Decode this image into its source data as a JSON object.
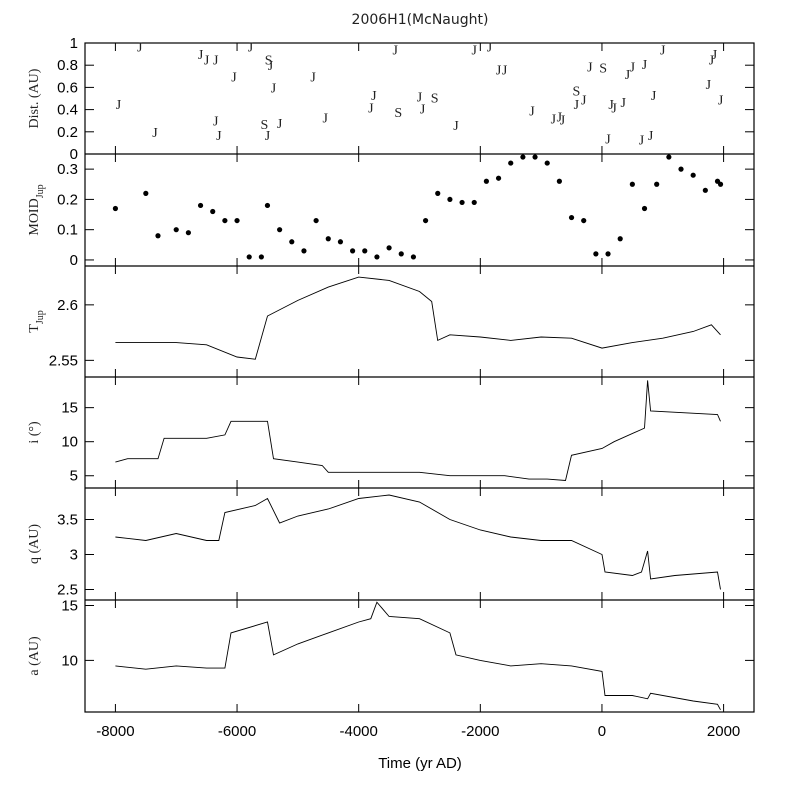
{
  "chart_data": {
    "type": "line",
    "title": "2006H1(McNaught)",
    "xlabel": "Time (yr AD)",
    "xlim": [
      -8500,
      2500
    ],
    "xticks": [
      -8000,
      -6000,
      -4000,
      -2000,
      0,
      2000
    ],
    "xtick_labels": [
      "-8000",
      "-6000",
      "-4000",
      "-2000",
      "0",
      "2000"
    ],
    "panels": [
      {
        "id": "dist",
        "ylabel": "Dist. (AU)",
        "type": "scatter",
        "ylim": [
          0,
          1
        ],
        "yticks": [
          0,
          0.2,
          0.4,
          0.6,
          0.8,
          1
        ],
        "ytick_labels": [
          "0",
          "0.2",
          "0.4",
          "0.6",
          "0.8",
          "1"
        ],
        "encounters": [
          {
            "t": -7950,
            "d": 0.45,
            "planet": "J"
          },
          {
            "t": -7600,
            "d": 0.97,
            "planet": "J"
          },
          {
            "t": -7350,
            "d": 0.2,
            "planet": "J"
          },
          {
            "t": -6600,
            "d": 0.9,
            "planet": "J"
          },
          {
            "t": -6500,
            "d": 0.85,
            "planet": "J"
          },
          {
            "t": -6350,
            "d": 0.85,
            "planet": "J"
          },
          {
            "t": -6350,
            "d": 0.3,
            "planet": "J"
          },
          {
            "t": -6300,
            "d": 0.17,
            "planet": "J"
          },
          {
            "t": -6050,
            "d": 0.7,
            "planet": "J"
          },
          {
            "t": -5780,
            "d": 0.97,
            "planet": "J"
          },
          {
            "t": -5550,
            "d": 0.27,
            "planet": "S"
          },
          {
            "t": -5500,
            "d": 0.17,
            "planet": "J"
          },
          {
            "t": -5480,
            "d": 0.85,
            "planet": "S"
          },
          {
            "t": -5450,
            "d": 0.8,
            "planet": "J"
          },
          {
            "t": -5400,
            "d": 0.6,
            "planet": "J"
          },
          {
            "t": -5300,
            "d": 0.28,
            "planet": "J"
          },
          {
            "t": -4750,
            "d": 0.7,
            "planet": "J"
          },
          {
            "t": -4550,
            "d": 0.33,
            "planet": "J"
          },
          {
            "t": -3800,
            "d": 0.42,
            "planet": "J"
          },
          {
            "t": -3750,
            "d": 0.53,
            "planet": "J"
          },
          {
            "t": -3400,
            "d": 0.94,
            "planet": "J"
          },
          {
            "t": -3350,
            "d": 0.38,
            "planet": "S"
          },
          {
            "t": -3000,
            "d": 0.52,
            "planet": "J"
          },
          {
            "t": -2950,
            "d": 0.41,
            "planet": "J"
          },
          {
            "t": -2750,
            "d": 0.51,
            "planet": "S"
          },
          {
            "t": -2400,
            "d": 0.26,
            "planet": "J"
          },
          {
            "t": -2100,
            "d": 0.94,
            "planet": "J"
          },
          {
            "t": -1850,
            "d": 0.97,
            "planet": "J"
          },
          {
            "t": -1700,
            "d": 0.76,
            "planet": "J"
          },
          {
            "t": -1600,
            "d": 0.76,
            "planet": "J"
          },
          {
            "t": -1150,
            "d": 0.39,
            "planet": "J"
          },
          {
            "t": -800,
            "d": 0.32,
            "planet": "J"
          },
          {
            "t": -700,
            "d": 0.34,
            "planet": "J"
          },
          {
            "t": -650,
            "d": 0.31,
            "planet": "J"
          },
          {
            "t": -420,
            "d": 0.45,
            "planet": "J"
          },
          {
            "t": -420,
            "d": 0.57,
            "planet": "S"
          },
          {
            "t": -300,
            "d": 0.49,
            "planet": "J"
          },
          {
            "t": -200,
            "d": 0.79,
            "planet": "J"
          },
          {
            "t": 20,
            "d": 0.78,
            "planet": "S"
          },
          {
            "t": 100,
            "d": 0.14,
            "planet": "J"
          },
          {
            "t": 150,
            "d": 0.45,
            "planet": "J"
          },
          {
            "t": 200,
            "d": 0.42,
            "planet": "J"
          },
          {
            "t": 350,
            "d": 0.47,
            "planet": "J"
          },
          {
            "t": 420,
            "d": 0.72,
            "planet": "J"
          },
          {
            "t": 500,
            "d": 0.79,
            "planet": "J"
          },
          {
            "t": 650,
            "d": 0.13,
            "planet": "J"
          },
          {
            "t": 700,
            "d": 0.81,
            "planet": "J"
          },
          {
            "t": 800,
            "d": 0.17,
            "planet": "J"
          },
          {
            "t": 850,
            "d": 0.53,
            "planet": "J"
          },
          {
            "t": 1000,
            "d": 0.94,
            "planet": "J"
          },
          {
            "t": 1750,
            "d": 0.63,
            "planet": "J"
          },
          {
            "t": 1800,
            "d": 0.85,
            "planet": "J"
          },
          {
            "t": 1850,
            "d": 0.9,
            "planet": "J"
          },
          {
            "t": 1950,
            "d": 0.49,
            "planet": "J"
          }
        ]
      },
      {
        "id": "moid",
        "ylabel": "MOID",
        "ylabel_sub": "Jup",
        "type": "scatter",
        "ylim": [
          -0.02,
          0.35
        ],
        "yticks": [
          0,
          0.1,
          0.2,
          0.3
        ],
        "ytick_labels": [
          "0",
          "0.1",
          "0.2",
          "0.3"
        ],
        "x": [
          -8000,
          -7500,
          -7300,
          -7000,
          -6800,
          -6600,
          -6400,
          -6200,
          -6000,
          -5800,
          -5600,
          -5500,
          -5300,
          -5100,
          -4900,
          -4700,
          -4500,
          -4300,
          -4100,
          -3900,
          -3700,
          -3500,
          -3300,
          -3100,
          -2900,
          -2700,
          -2500,
          -2300,
          -2100,
          -1900,
          -1700,
          -1500,
          -1300,
          -1100,
          -900,
          -700,
          -500,
          -300,
          -100,
          100,
          300,
          500,
          700,
          900,
          1100,
          1300,
          1500,
          1700,
          1900,
          1950
        ],
        "y": [
          0.17,
          0.22,
          0.08,
          0.1,
          0.09,
          0.18,
          0.16,
          0.13,
          0.13,
          0.01,
          0.01,
          0.18,
          0.1,
          0.06,
          0.03,
          0.13,
          0.07,
          0.06,
          0.03,
          0.03,
          0.01,
          0.04,
          0.02,
          0.01,
          0.13,
          0.22,
          0.2,
          0.19,
          0.19,
          0.26,
          0.27,
          0.32,
          0.34,
          0.34,
          0.32,
          0.26,
          0.14,
          0.13,
          0.02,
          0.02,
          0.07,
          0.25,
          0.17,
          0.25,
          0.34,
          0.3,
          0.28,
          0.23,
          0.26,
          0.25
        ]
      },
      {
        "id": "tjup",
        "ylabel": "T",
        "ylabel_sub": "Jup",
        "type": "line",
        "ylim": [
          2.535,
          2.635
        ],
        "yticks": [
          2.55,
          2.6
        ],
        "ytick_labels": [
          "2.55",
          "2.6"
        ],
        "x": [
          -8000,
          -7500,
          -7000,
          -6500,
          -6000,
          -5700,
          -5500,
          -5000,
          -4500,
          -4000,
          -3500,
          -3000,
          -2800,
          -2700,
          -2500,
          -2000,
          -1500,
          -1000,
          -500,
          0,
          500,
          1000,
          1500,
          1800,
          1950
        ],
        "y": [
          2.566,
          2.566,
          2.566,
          2.564,
          2.553,
          2.551,
          2.59,
          2.604,
          2.616,
          2.625,
          2.622,
          2.612,
          2.603,
          2.568,
          2.573,
          2.571,
          2.568,
          2.571,
          2.57,
          2.561,
          2.566,
          2.57,
          2.576,
          2.582,
          2.573
        ]
      },
      {
        "id": "incl",
        "ylabel": "i (°)",
        "type": "line",
        "ylim": [
          3.2,
          19.5
        ],
        "yticks": [
          5,
          10,
          15
        ],
        "ytick_labels": [
          "5",
          "10",
          "15"
        ],
        "x": [
          -8000,
          -7800,
          -7300,
          -7200,
          -6500,
          -6200,
          -6100,
          -5500,
          -5400,
          -5000,
          -4600,
          -4500,
          -3800,
          -3000,
          -2500,
          -1600,
          -1200,
          -900,
          -600,
          -500,
          0,
          200,
          700,
          750,
          800,
          1900,
          1950
        ],
        "y": [
          7,
          7.5,
          7.5,
          10.5,
          10.5,
          11,
          13,
          13,
          7.5,
          7,
          6.5,
          5.5,
          5.5,
          5.5,
          5,
          5,
          4.5,
          4.5,
          4.3,
          8,
          9,
          10,
          12,
          19,
          14.5,
          14,
          13
        ]
      },
      {
        "id": "q",
        "ylabel": "q (AU)",
        "type": "line",
        "ylim": [
          2.35,
          3.95
        ],
        "yticks": [
          2.5,
          3,
          3.5
        ],
        "ytick_labels": [
          "2.5",
          "3",
          "3.5"
        ],
        "x": [
          -8000,
          -7500,
          -7000,
          -6500,
          -6300,
          -6200,
          -5700,
          -5500,
          -5300,
          -5000,
          -4500,
          -4000,
          -3500,
          -3000,
          -2500,
          -2000,
          -1500,
          -1000,
          -500,
          0,
          50,
          500,
          650,
          750,
          800,
          1200,
          1900,
          1950
        ],
        "y": [
          3.25,
          3.2,
          3.3,
          3.2,
          3.2,
          3.6,
          3.7,
          3.8,
          3.45,
          3.55,
          3.65,
          3.8,
          3.85,
          3.75,
          3.5,
          3.35,
          3.25,
          3.2,
          3.2,
          3.0,
          2.75,
          2.7,
          2.75,
          3.05,
          2.65,
          2.7,
          2.75,
          2.5
        ]
      },
      {
        "id": "a",
        "ylabel": "a (AU)",
        "type": "line",
        "ylim": [
          5.3,
          15.5
        ],
        "yticks": [
          10,
          15
        ],
        "ytick_labels": [
          "10",
          "15"
        ],
        "x": [
          -8000,
          -7500,
          -7000,
          -6500,
          -6200,
          -6100,
          -5500,
          -5400,
          -5000,
          -4500,
          -4000,
          -3800,
          -3700,
          -3500,
          -3000,
          -2500,
          -2400,
          -2000,
          -1500,
          -1000,
          -500,
          0,
          50,
          500,
          750,
          800,
          1500,
          1900,
          1950
        ],
        "y": [
          9.5,
          9.2,
          9.5,
          9.3,
          9.3,
          12.5,
          13.5,
          10.5,
          11.5,
          12.5,
          13.5,
          13.8,
          15.3,
          14,
          13.8,
          12.5,
          10.5,
          10,
          9.5,
          9.7,
          9.5,
          9,
          6.8,
          6.8,
          6.5,
          7,
          6.3,
          6,
          5.5
        ]
      }
    ]
  }
}
